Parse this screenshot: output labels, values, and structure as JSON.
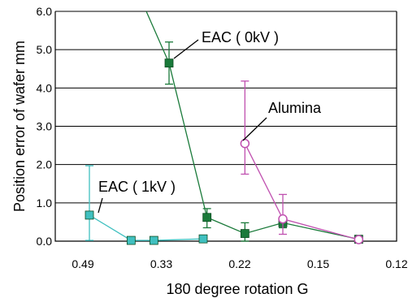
{
  "chart_data": {
    "type": "line",
    "xlabel": "180 degree rotation G",
    "ylabel": "Position error of wafer  mm",
    "x_tick_labels": [
      "0.49",
      "0.33",
      "0.22",
      "0.15",
      "0.12"
    ],
    "y_tick_labels": [
      "0.0",
      "1.0",
      "2.0",
      "3.0",
      "4.0",
      "5.0",
      "6.0"
    ],
    "ylim": [
      0,
      6
    ],
    "x_category_count": 9,
    "grid": "horizontal",
    "series": [
      {
        "name": "EAC ( 0kV )",
        "color": "#1a7a3a",
        "marker": "filled-square",
        "points": [
          {
            "x": 3.0,
            "y": 4.65,
            "err_low": 4.1,
            "err_high": 5.2
          },
          {
            "x": 4.0,
            "y": 0.62,
            "err_low": 0.35,
            "err_high": 0.85
          },
          {
            "x": 5.0,
            "y": 0.2,
            "err_low": 0.0,
            "err_high": 0.48
          },
          {
            "x": 6.0,
            "y": 0.48,
            "err_low": 0.35,
            "err_high": 0.62
          },
          {
            "x": 8.0,
            "y": 0.05,
            "err_low": 0.02,
            "err_high": 0.08
          }
        ],
        "leading_line_from": {
          "x": 2.4,
          "y": 6.0
        }
      },
      {
        "name": "EAC ( 1kV )",
        "color": "#40c0c0",
        "marker": "filled-square",
        "points": [
          {
            "x": 0.9,
            "y": 0.68,
            "err_low": 0.02,
            "err_high": 1.97
          },
          {
            "x": 2.0,
            "y": 0.02
          },
          {
            "x": 2.6,
            "y": 0.02
          },
          {
            "x": 3.9,
            "y": 0.06
          }
        ]
      },
      {
        "name": "Alumina",
        "color": "#c050b0",
        "marker": "open-circle",
        "points": [
          {
            "x": 5.0,
            "y": 2.55,
            "err_low": 1.75,
            "err_high": 4.18
          },
          {
            "x": 6.0,
            "y": 0.58,
            "err_low": 0.18,
            "err_high": 1.22
          },
          {
            "x": 8.0,
            "y": 0.04
          }
        ]
      }
    ],
    "annotations": [
      {
        "text": "EAC ( 0kV )",
        "series": "EAC ( 0kV )"
      },
      {
        "text": "Alumina",
        "series": "Alumina"
      },
      {
        "text": "EAC ( 1kV )",
        "series": "EAC ( 1kV )"
      }
    ]
  }
}
